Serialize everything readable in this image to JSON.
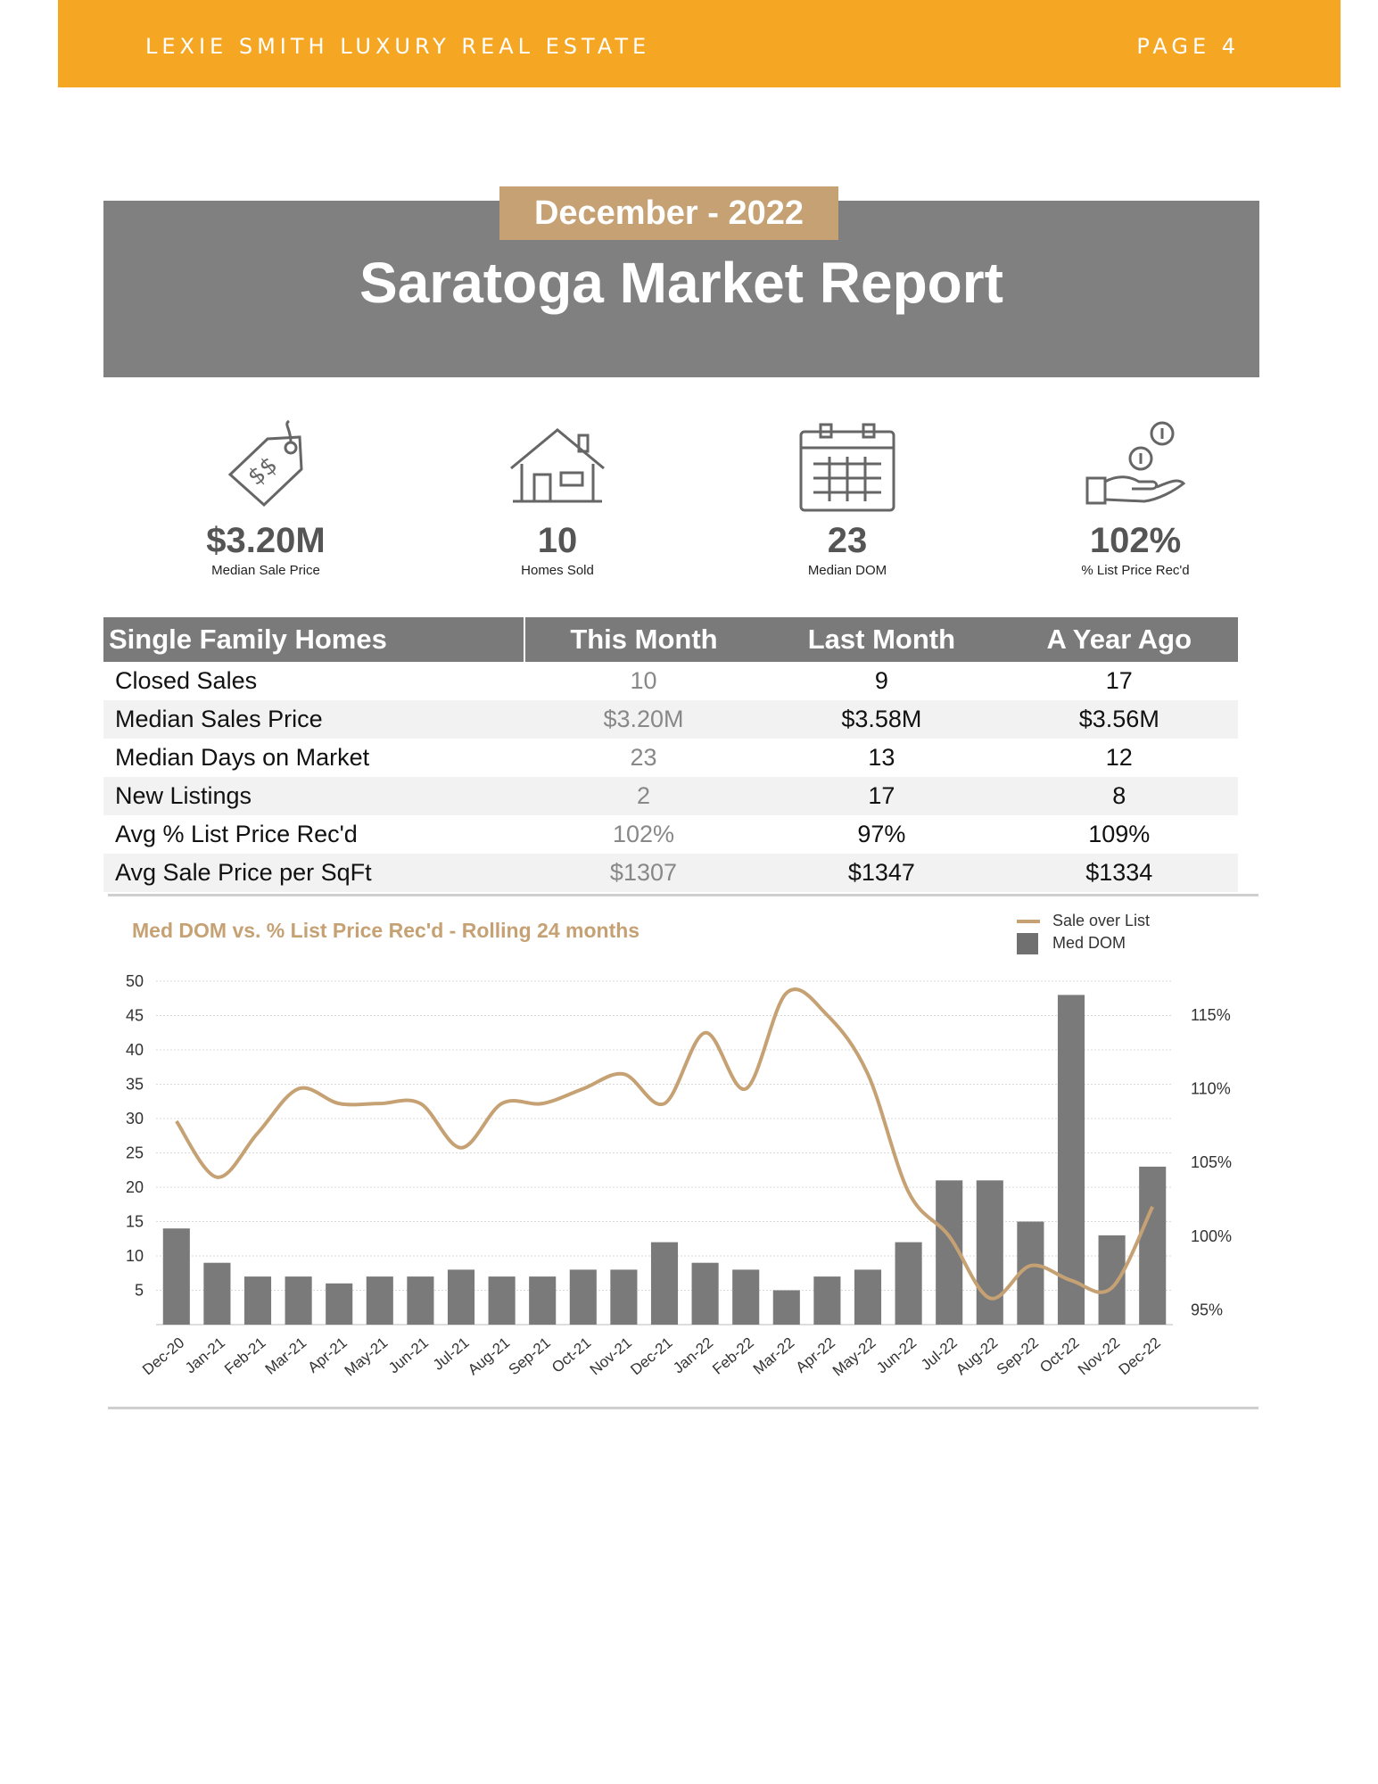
{
  "header": {
    "brand": "LEXIE SMITH LUXURY REAL ESTATE",
    "page": "PAGE 4"
  },
  "report": {
    "date": "December - 2022",
    "title": "Saratoga Market Report"
  },
  "stats": [
    {
      "icon": "price-tag-icon",
      "value": "$3.20M",
      "caption": "Median Sale Price"
    },
    {
      "icon": "house-icon",
      "value": "10",
      "caption": "Homes Sold"
    },
    {
      "icon": "calendar-icon",
      "value": "23",
      "caption": "Median DOM"
    },
    {
      "icon": "hand-coins-icon",
      "value": "102%",
      "caption": "% List Price Rec'd"
    }
  ],
  "table": {
    "headers": [
      "Single Family Homes",
      "This Month",
      "Last Month",
      "A Year Ago"
    ],
    "rows": [
      [
        "Closed Sales",
        "10",
        "9",
        "17"
      ],
      [
        "Median Sales Price",
        "$3.20M",
        "$3.58M",
        "$3.56M"
      ],
      [
        "Median Days on Market",
        "23",
        "13",
        "12"
      ],
      [
        "New Listings",
        "2",
        "17",
        "8"
      ],
      [
        "Avg % List Price Rec'd",
        "102%",
        "97%",
        "109%"
      ],
      [
        "Avg Sale Price per SqFt",
        "$1307",
        "$1347",
        "$1334"
      ]
    ]
  },
  "chart_data": {
    "type": "bar",
    "title": "Med DOM  vs. % List Price Rec'd - Rolling 24 months",
    "categories": [
      "Dec-20",
      "Jan-21",
      "Feb-21",
      "Mar-21",
      "Apr-21",
      "May-21",
      "Jun-21",
      "Jul-21",
      "Aug-21",
      "Sep-21",
      "Oct-21",
      "Nov-21",
      "Dec-21",
      "Jan-22",
      "Feb-22",
      "Mar-22",
      "Apr-22",
      "May-22",
      "Jun-22",
      "Jul-22",
      "Aug-22",
      "Sep-22",
      "Oct-22",
      "Nov-22",
      "Dec-22"
    ],
    "y_left": {
      "ticks": [
        5,
        10,
        15,
        20,
        25,
        30,
        35,
        40,
        45,
        50
      ],
      "range": [
        0,
        50
      ]
    },
    "y_right": {
      "ticks": [
        "95%",
        "100%",
        "105%",
        "110%",
        "115%"
      ],
      "range": [
        94,
        117.3
      ]
    },
    "series": [
      {
        "name": "Med DOM",
        "type": "bar",
        "axis": "left",
        "color": "#7a7a7a",
        "values": [
          14,
          9,
          7,
          7,
          6,
          7,
          7,
          8,
          7,
          7,
          8,
          8,
          12,
          9,
          8,
          5,
          7,
          8,
          12,
          21,
          21,
          15,
          48,
          13,
          23
        ]
      },
      {
        "name": "Sale over List",
        "type": "line",
        "axis": "right",
        "color": "#C5A173",
        "values": [
          107.8,
          104.0,
          107.0,
          110.0,
          109.0,
          109.0,
          109.0,
          106.0,
          109.0,
          109.0,
          110.0,
          111.0,
          109.0,
          113.8,
          110.0,
          116.5,
          115.0,
          111.0,
          103.0,
          100.0,
          95.8,
          98.0,
          97.0,
          96.5,
          102.0
        ]
      }
    ],
    "legend_position": "top-right",
    "grid": true
  }
}
